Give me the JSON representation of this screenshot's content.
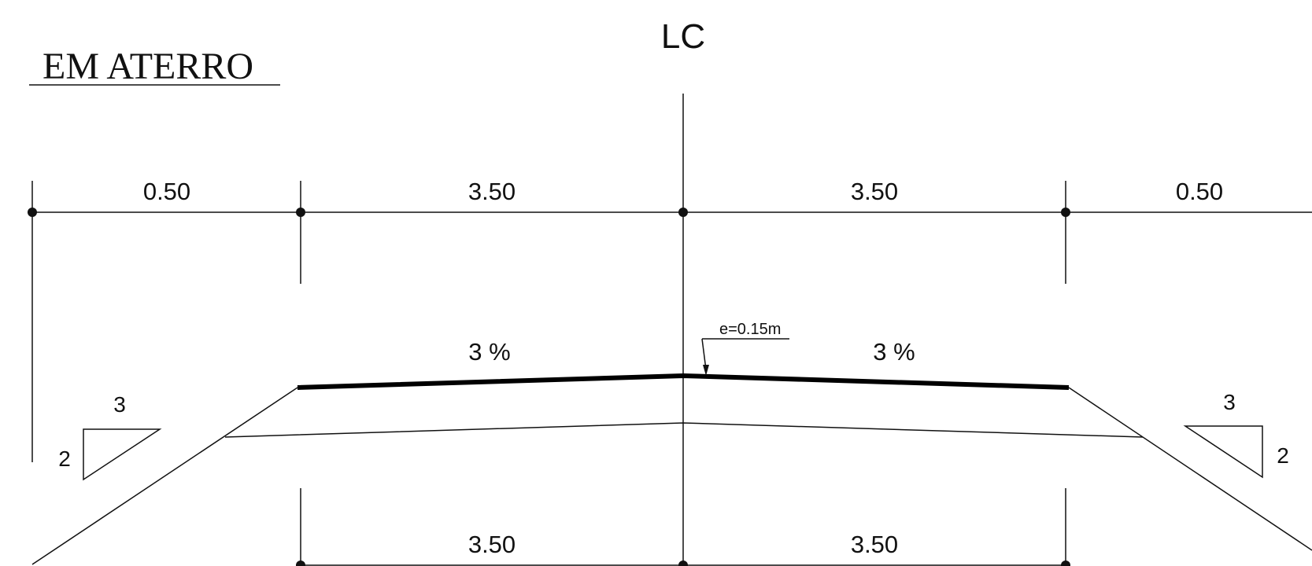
{
  "title": "EM ATERRO",
  "centerline_label": "LC",
  "top_dimensions": [
    "0.50",
    "3.50",
    "3.50",
    "0.50"
  ],
  "bottom_dimensions": [
    "3.50",
    "3.50"
  ],
  "cross_slopes": {
    "left": "3 %",
    "right": "3 %"
  },
  "pavement_thickness_label": "e=0.15m",
  "embankment_slope_left": {
    "horizontal": "3",
    "vertical": "2"
  },
  "embankment_slope_right": {
    "horizontal": "3",
    "vertical": "2"
  },
  "colors": {
    "line": "#111111",
    "background": "#ffffff"
  }
}
